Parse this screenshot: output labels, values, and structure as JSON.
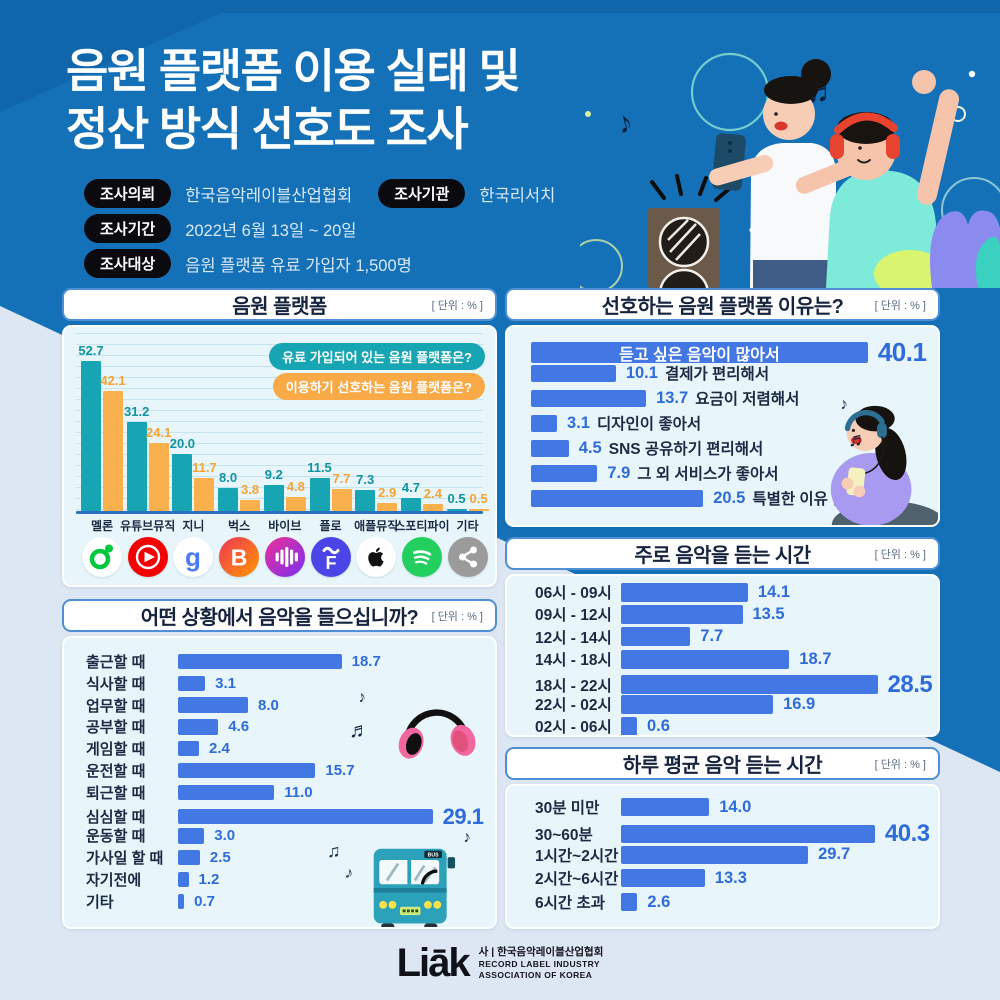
{
  "colors": {
    "background_top": "#1471b8",
    "background_bottom": "#dde6f3",
    "panel_body": "#e8f6fb",
    "bar_blue": "#4377e3",
    "value_blue": "#2e6cdb",
    "teal": "#17a5b3",
    "orange": "#f9b04d",
    "pill_black": "#0b0b0f",
    "title_navy": "#16233e"
  },
  "header": {
    "title_line1": "음원 플랫폼 이용 실태 및",
    "title_line2": "정산 방식 선호도 조사",
    "info": [
      {
        "label": "조사의뢰",
        "value": "한국음악레이블산업협회"
      },
      {
        "label": "조사기관",
        "value": "한국리서치"
      },
      {
        "label": "조사기간",
        "value": "2022년 6월 13일 ~ 20일"
      },
      {
        "label": "조사대상",
        "value": "음원 플랫폼 유료 가입자 1,500명"
      }
    ]
  },
  "chart_data": [
    {
      "id": "platforms",
      "type": "bar",
      "title": "음원 플랫폼",
      "unit": "[ 단위 : % ]",
      "legend_position": "top-right",
      "categories": [
        "멜론",
        "유튜브뮤직",
        "지니",
        "벅스",
        "바이브",
        "플로",
        "애플뮤직",
        "스포티파이",
        "기타"
      ],
      "series": [
        {
          "name": "유료 가입되어 있는 음원 플랫폼은?",
          "color": "#17a5b3",
          "values": [
            52.7,
            31.2,
            20.0,
            8.0,
            9.2,
            11.5,
            7.3,
            4.7,
            0.5
          ]
        },
        {
          "name": "이용하기 선호하는 음원 플랫폼은?",
          "color": "#f9b04d",
          "values": [
            42.1,
            24.1,
            11.7,
            3.8,
            4.8,
            7.7,
            2.9,
            2.4,
            0.5
          ]
        }
      ],
      "icons": [
        "melon-icon",
        "youtube-music-icon",
        "genie-icon",
        "bugs-icon",
        "vibe-icon",
        "flo-icon",
        "apple-music-icon",
        "spotify-icon",
        "share-icon"
      ]
    },
    {
      "id": "reasons",
      "type": "bar",
      "title": "선호하는 음원 플랫폼 이유는?",
      "unit": "[ 단위 : % ]",
      "categories": [
        "듣고 싶은 음악이 많아서",
        "결제가 편리해서",
        "요금이 저렴해서",
        "디자인이 좋아서",
        "SNS 공유하기 편리해서",
        "그 외 서비스가 좋아서",
        "특별한 이유 없음"
      ],
      "values": [
        40.1,
        10.1,
        13.7,
        3.1,
        4.5,
        7.9,
        20.5
      ]
    },
    {
      "id": "listen_time",
      "type": "bar",
      "title": "주로 음악을 듣는 시간",
      "unit": "[ 단위 : % ]",
      "categories": [
        "06시 - 09시",
        "09시 - 12시",
        "12시 - 14시",
        "14시 - 18시",
        "18시 - 22시",
        "22시 - 02시",
        "02시 - 06시"
      ],
      "values": [
        14.1,
        13.5,
        7.7,
        18.7,
        28.5,
        16.9,
        0.6
      ]
    },
    {
      "id": "situations",
      "type": "bar",
      "title": "어떤 상황에서 음악을 들으십니까?",
      "unit": "[ 단위 : % ]",
      "categories": [
        "출근할 때",
        "식사할 때",
        "업무할 때",
        "공부할 때",
        "게임할 때",
        "운전할 때",
        "퇴근할 때",
        "심심할 때",
        "운동할 때",
        "가사일 할 때",
        "자기전에",
        "기타"
      ],
      "values": [
        18.7,
        3.1,
        8.0,
        4.6,
        2.4,
        15.7,
        11.0,
        29.1,
        3.0,
        2.5,
        1.2,
        0.7
      ]
    },
    {
      "id": "daily_time",
      "type": "bar",
      "title": "하루 평균 음악 듣는 시간",
      "unit": "[ 단위 : % ]",
      "categories": [
        "30분 미만",
        "30~60분",
        "1시간~2시간",
        "2시간~6시간",
        "6시간 초과"
      ],
      "values": [
        14.0,
        40.3,
        29.7,
        13.3,
        2.6
      ]
    }
  ],
  "footer": {
    "logo": "Liāk",
    "org_kr": "사 | 한국음악레이블산업협회",
    "org_en_line1": "RECORD LABEL INDUSTRY",
    "org_en_line2": "ASSOCIATION OF KOREA"
  }
}
